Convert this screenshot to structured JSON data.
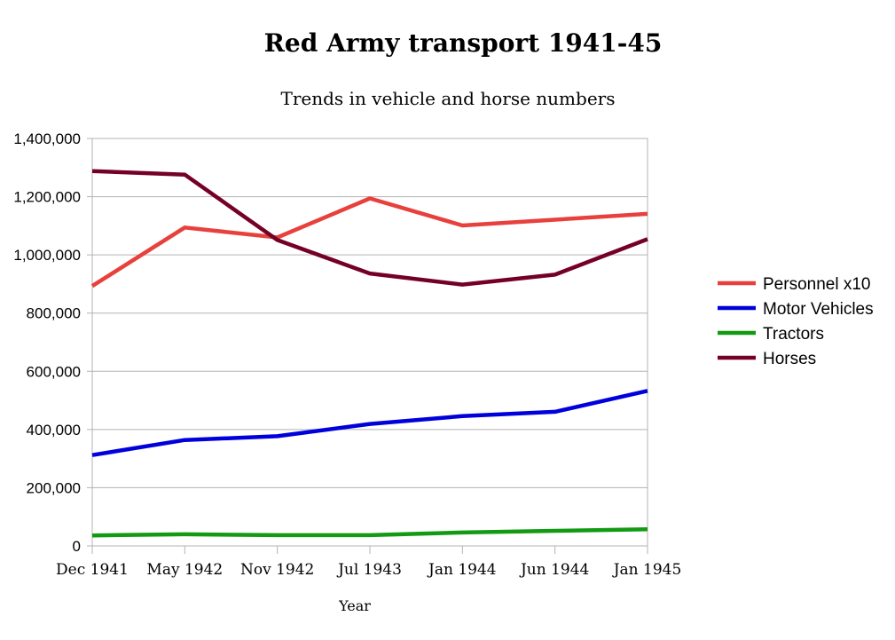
{
  "chart_data": {
    "type": "line",
    "title": "Red Army transport 1941-45",
    "subtitle": "Trends in vehicle and horse numbers",
    "xlabel": "Year",
    "ylabel": "",
    "categories": [
      "Dec 1941",
      "May 1942",
      "Nov 1942",
      "Jul 1943",
      "Jan 1944",
      "Jun 1944",
      "Jan 1945"
    ],
    "ylim": [
      0,
      1400000
    ],
    "yticks": [
      0,
      200000,
      400000,
      600000,
      800000,
      1000000,
      1200000,
      1400000
    ],
    "ytick_labels": [
      "0",
      "200,000",
      "400,000",
      "600,000",
      "800,000",
      "1,000,000",
      "1,200,000",
      "1,400,000"
    ],
    "grid": true,
    "legend_position": "right",
    "series": [
      {
        "name": "Personnel x10",
        "color": "#e8403c",
        "values": [
          893000,
          1094000,
          1060000,
          1194000,
          1101000,
          1121000,
          1141000
        ]
      },
      {
        "name": "Motor Vehicles",
        "color": "#0000dd",
        "values": [
          312000,
          364000,
          377000,
          419000,
          446000,
          461000,
          533000
        ]
      },
      {
        "name": "Tractors",
        "color": "#129a12",
        "values": [
          36000,
          40000,
          37000,
          37000,
          46000,
          52000,
          57000
        ]
      },
      {
        "name": "Horses",
        "color": "#750025",
        "values": [
          1288000,
          1276000,
          1051000,
          936000,
          898000,
          932000,
          1054000
        ]
      }
    ]
  }
}
